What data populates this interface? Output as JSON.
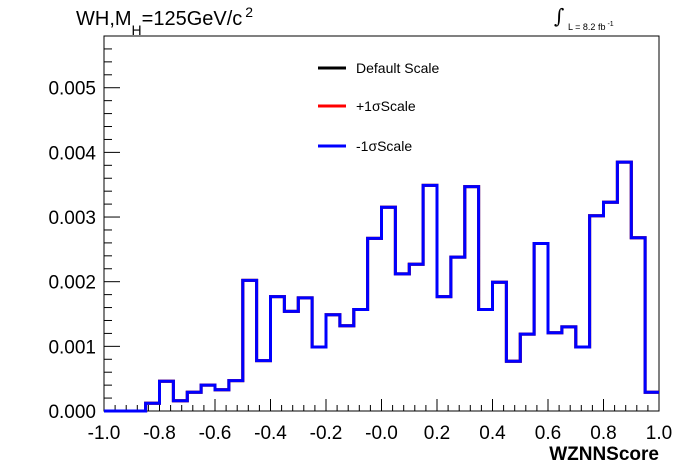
{
  "title": {
    "prefix": "WH,M",
    "subscript": "H",
    "suffix": "=125GeV/c",
    "superscript": "2"
  },
  "luminosity": {
    "integral_symbol": "∫",
    "text": "L = 8.2 fb",
    "superscript": "-1"
  },
  "colors": {
    "default_scale": "#000000",
    "plus_sigma": "#ff0000",
    "minus_sigma": "#0000ff"
  },
  "chart_data": {
    "type": "line",
    "histogram": true,
    "title": "WH,MH=125GeV/c 2",
    "xlabel": "WZNNScore",
    "ylabel": "",
    "xlim": [
      -1.0,
      1.0
    ],
    "ylim": [
      0.0,
      0.0058
    ],
    "grid": false,
    "legend_position": "top-center",
    "x_ticks": [
      "-1.0",
      "-0.8",
      "-0.6",
      "-0.4",
      "-0.2",
      "-0.0",
      "0.2",
      "0.4",
      "0.6",
      "0.8",
      "1.0"
    ],
    "x_tick_values": [
      -1.0,
      -0.8,
      -0.6,
      -0.4,
      -0.2,
      0.0,
      0.2,
      0.4,
      0.6,
      0.8,
      1.0
    ],
    "y_ticks": [
      "0.000",
      "0.001",
      "0.002",
      "0.003",
      "0.004",
      "0.005"
    ],
    "y_tick_values": [
      0.0,
      0.001,
      0.002,
      0.003,
      0.004,
      0.005
    ],
    "bin_edges": [
      -1.0,
      -0.95,
      -0.9,
      -0.85,
      -0.8,
      -0.75,
      -0.7,
      -0.65,
      -0.6,
      -0.55,
      -0.5,
      -0.45,
      -0.4,
      -0.35,
      -0.3,
      -0.25,
      -0.2,
      -0.15,
      -0.1,
      -0.05,
      0.0,
      0.05,
      0.1,
      0.15,
      0.2,
      0.25,
      0.3,
      0.35,
      0.4,
      0.45,
      0.5,
      0.55,
      0.6,
      0.65,
      0.7,
      0.75,
      0.8,
      0.85,
      0.9,
      0.95,
      1.0
    ],
    "series": [
      {
        "name": "Default Scale",
        "color": "#000000",
        "values": [
          0.0,
          0.0,
          0.0,
          0.00012,
          0.00046,
          0.00016,
          0.00029,
          0.0004,
          0.00033,
          0.00047,
          0.00202,
          0.00078,
          0.00177,
          0.00154,
          0.00175,
          0.00099,
          0.00149,
          0.00132,
          0.00157,
          0.00267,
          0.00315,
          0.00212,
          0.00227,
          0.00349,
          0.00177,
          0.00238,
          0.00347,
          0.00157,
          0.00199,
          0.00077,
          0.00119,
          0.00259,
          0.00121,
          0.0013,
          0.00099,
          0.00302,
          0.00323,
          0.00385,
          0.00268,
          0.00029
        ]
      },
      {
        "name": "+1σScale",
        "color": "#ff0000",
        "values": [
          0.0,
          0.0,
          0.0,
          0.00012,
          0.00046,
          0.00016,
          0.00029,
          0.0004,
          0.00033,
          0.00047,
          0.00202,
          0.00078,
          0.00177,
          0.00154,
          0.00175,
          0.00099,
          0.00149,
          0.00132,
          0.00157,
          0.00267,
          0.00315,
          0.00212,
          0.00227,
          0.00349,
          0.00177,
          0.00238,
          0.00347,
          0.00157,
          0.00199,
          0.00077,
          0.00119,
          0.00259,
          0.00121,
          0.0013,
          0.00099,
          0.00302,
          0.00323,
          0.00385,
          0.00268,
          0.00029
        ]
      },
      {
        "name": "-1σScale",
        "color": "#0000ff",
        "values": [
          0.0,
          0.0,
          0.0,
          0.00012,
          0.00046,
          0.00016,
          0.00029,
          0.0004,
          0.00033,
          0.00047,
          0.00202,
          0.00078,
          0.00177,
          0.00154,
          0.00175,
          0.00099,
          0.00149,
          0.00132,
          0.00157,
          0.00267,
          0.00315,
          0.00212,
          0.00227,
          0.00349,
          0.00177,
          0.00238,
          0.00347,
          0.00157,
          0.00199,
          0.00077,
          0.00119,
          0.00259,
          0.00121,
          0.0013,
          0.00099,
          0.00302,
          0.00323,
          0.00385,
          0.00268,
          0.00029
        ]
      }
    ]
  }
}
